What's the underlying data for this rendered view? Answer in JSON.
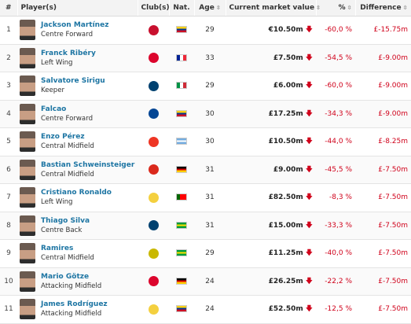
{
  "headers": {
    "num": "#",
    "player": "Player(s)",
    "club": "Club(s)",
    "nat": "Nat.",
    "age": "Age",
    "market": "Current market value",
    "pct": "%",
    "diff": "Difference"
  },
  "rows": [
    {
      "num": "1",
      "name": "Jackson Martínez",
      "position": "Centre Forward",
      "club_color": "#c8102e",
      "flag": [
        "#fcd116",
        "#003893",
        "#ce1126"
      ],
      "flag_dir": "h",
      "age": "29",
      "value": "€10.50m",
      "pct": "-60,0 %",
      "diff": "£-15.75m"
    },
    {
      "num": "2",
      "name": "Franck Ribéry",
      "position": "Left Wing",
      "club_color": "#dc052d",
      "flag": [
        "#002395",
        "#ffffff",
        "#ed2939"
      ],
      "flag_dir": "v",
      "age": "33",
      "value": "£7.50m",
      "pct": "-54,5 %",
      "diff": "£-9.00m"
    },
    {
      "num": "3",
      "name": "Salvatore Sirigu",
      "position": "Keeper",
      "club_color": "#004170",
      "flag": [
        "#009246",
        "#ffffff",
        "#ce2b37"
      ],
      "flag_dir": "v",
      "age": "29",
      "value": "£6.00m",
      "pct": "-60,0 %",
      "diff": "£-9.00m"
    },
    {
      "num": "4",
      "name": "Falcao",
      "position": "Centre Forward",
      "club_color": "#034694",
      "flag": [
        "#fcd116",
        "#003893",
        "#ce1126"
      ],
      "flag_dir": "h",
      "age": "30",
      "value": "£17.25m",
      "pct": "-34,3 %",
      "diff": "£-9.00m"
    },
    {
      "num": "5",
      "name": "Enzo Pérez",
      "position": "Central Midfield",
      "club_color": "#ee3524",
      "flag": [
        "#74acdf",
        "#ffffff",
        "#74acdf"
      ],
      "flag_dir": "h",
      "age": "30",
      "value": "£10.50m",
      "pct": "-44,0 %",
      "diff": "£-8.25m"
    },
    {
      "num": "6",
      "name": "Bastian Schweinsteiger",
      "position": "Central Midfield",
      "club_color": "#da291c",
      "flag": [
        "#000000",
        "#dd0000",
        "#ffce00"
      ],
      "flag_dir": "h",
      "age": "31",
      "value": "£9.00m",
      "pct": "-45,5 %",
      "diff": "£-7.50m"
    },
    {
      "num": "7",
      "name": "Cristiano Ronaldo",
      "position": "Left Wing",
      "club_color": "#f4d03f",
      "flag": [
        "#006600",
        "#ff0000",
        "#ff0000"
      ],
      "flag_dir": "v",
      "age": "31",
      "value": "£82.50m",
      "pct": "-8,3 %",
      "diff": "£-7.50m"
    },
    {
      "num": "8",
      "name": "Thiago Silva",
      "position": "Centre Back",
      "club_color": "#004170",
      "flag": [
        "#009c3b",
        "#ffdf00",
        "#009c3b"
      ],
      "flag_dir": "h",
      "age": "31",
      "value": "£15.00m",
      "pct": "-33,3 %",
      "diff": "£-7.50m"
    },
    {
      "num": "9",
      "name": "Ramires",
      "position": "Central Midfield",
      "club_color": "#c9b800",
      "flag": [
        "#009c3b",
        "#ffdf00",
        "#009c3b"
      ],
      "flag_dir": "h",
      "age": "29",
      "value": "£11.25m",
      "pct": "-40,0 %",
      "diff": "£-7.50m"
    },
    {
      "num": "10",
      "name": "Mario Götze",
      "position": "Attacking Midfield",
      "club_color": "#dc052d",
      "flag": [
        "#000000",
        "#dd0000",
        "#ffce00"
      ],
      "flag_dir": "h",
      "age": "24",
      "value": "£26.25m",
      "pct": "-22,2 %",
      "diff": "£-7.50m"
    },
    {
      "num": "11",
      "name": "James Rodríguez",
      "position": "Attacking Midfield",
      "club_color": "#f4d03f",
      "flag": [
        "#fcd116",
        "#003893",
        "#ce1126"
      ],
      "flag_dir": "h",
      "age": "24",
      "value": "£52.50m",
      "pct": "-12,5 %",
      "diff": "£-7.50m"
    }
  ]
}
